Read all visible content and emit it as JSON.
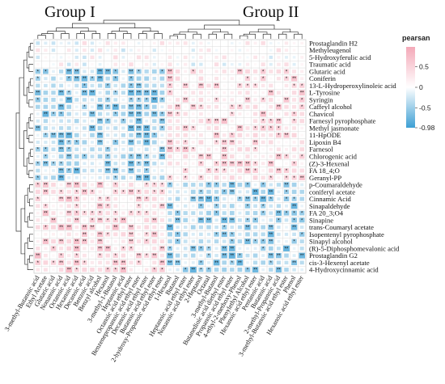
{
  "chart_data": {
    "type": "heatmap",
    "group_labels": [
      "Group I",
      "Group II"
    ],
    "legend": {
      "title": "pearsan",
      "ticks": [
        "0.5",
        "0",
        "-0.5",
        "-0.98"
      ],
      "tick_values": [
        0.5,
        0,
        -0.5,
        -0.98
      ],
      "range": [
        -0.98,
        0.98
      ],
      "colors": {
        "negative": "#3d9fd4",
        "zero": "#ffffff",
        "positive": "#f4a9b8"
      }
    },
    "rows": [
      "Prostaglandin H2",
      "Methyleugenol",
      "5-Hydroxyferulic acid",
      "Traumatic acid",
      "Glutaric acid",
      "Coniferin",
      "13-L-Hydroperoxylinoleic acid",
      "L-Tyrosine",
      "Syringin",
      "Caffeyl alcohol",
      "Chavicol",
      "Farnesyl pyrophosphate",
      "Methyl jasmonate",
      "11-HpODE",
      "Lipoxin B4",
      "Farnesol",
      "Chlorogenic acid",
      "(Z)-3-Hexenal",
      "FA 18_4;O",
      "Geranyl-PP",
      "p-Coumaraldehyde",
      "coniferyl acetate",
      "Cinnamic Acid",
      "Sinapaldehyde",
      "FA 20_3;O4",
      "Sinapine",
      "trans-Coumaryl acetate",
      "Isopentenyl pyrophosphate",
      "Sinapyl alcohol",
      "(R)-5-Diphosphomevalonic acid",
      "Prostaglandin G2",
      "cis-3-Hexenyl acetate",
      "4-Hydroxycinnamic acid"
    ],
    "columns": [
      "3-methyl-Butanoic acid",
      "Ethyl Acetate",
      "Glutaric acid",
      "Nonanoic acid",
      "Octanoic acid",
      "Hexanoic acid",
      "Decanoic acid",
      "Benzoic acid",
      "Benzyl alcohol",
      "Hexanol",
      "3-methyl-1-Butanol",
      "Heptanoic acid",
      "Octanoic acid ethyl ester",
      "Benzenepropanoic acid ethyl ester",
      "Decanoic acid ethyl ester",
      "Butanoic acid ethyl ester",
      "2-hydroxy-Propanoic acid ethyl ester",
      "1-Hexanol",
      "Butanol",
      "Heptanoic acid ethyl ester",
      "Nonanoic acid ethyl ester",
      "2-Heptanol",
      "Octanal",
      "3-methyl-Butanol",
      "Butanedioic acid diethyl ester",
      "Propanoic acid ethyl ester",
      "4-ethyl-2-methoxy-Phenol",
      "Phenylethyl Alcohol",
      "Hexanoic acid ethyl ester",
      "Pentanoic acid",
      "Butanoic acid",
      "2-methyl-Propanoic acid",
      "3-methyl-Butanoic acid ethyl ester",
      "Phenol",
      "Hexanoic acid ethyl ester"
    ],
    "row_clusters": [
      [
        0,
        19
      ],
      [
        20,
        32
      ]
    ],
    "col_clusters": [
      [
        0,
        16
      ],
      [
        17,
        34
      ]
    ],
    "significance": [
      "*",
      "**",
      "***"
    ]
  }
}
